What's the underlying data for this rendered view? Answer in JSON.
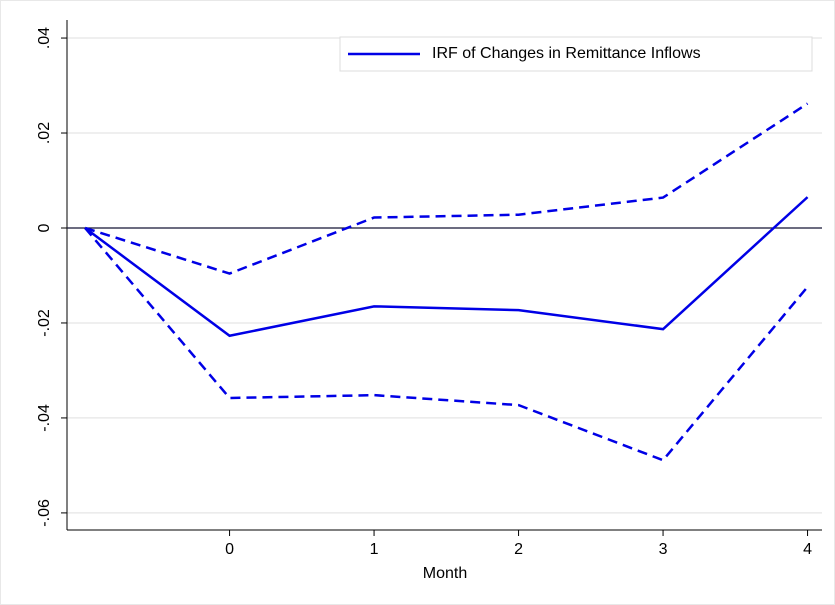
{
  "chart_data": {
    "type": "line",
    "x_label": "Month",
    "x": [
      -1,
      0,
      1,
      2,
      3,
      4
    ],
    "series": [
      {
        "name": "IRF of Changes in Remittance Inflows",
        "color": "#0000e6",
        "dash": false,
        "values": [
          0,
          -0.0227,
          -0.0165,
          -0.0173,
          -0.0213,
          0.0065
        ]
      },
      {
        "color": "#0000e6",
        "dash": true,
        "values": [
          0,
          -0.0096,
          0.0022,
          0.0028,
          0.0064,
          0.0262
        ]
      },
      {
        "color": "#0000e6",
        "dash": true,
        "values": [
          0,
          -0.0358,
          -0.0352,
          -0.0373,
          -0.0489,
          -0.0124
        ]
      }
    ],
    "xlim": [
      -1.125,
      4.1
    ],
    "ylim": [
      -0.0636,
      0.0438
    ],
    "xticks": [
      0,
      1,
      2,
      3,
      4
    ],
    "yticks": [
      {
        "value": -0.06,
        "label": "-.06"
      },
      {
        "value": -0.04,
        "label": "-.04"
      },
      {
        "value": -0.02,
        "label": "-.02"
      },
      0,
      {
        "value": 0.02,
        "label": ".02"
      },
      {
        "value": 0.04,
        "label": ".04"
      }
    ],
    "yline": 0,
    "grid": true,
    "legend": "top-right"
  }
}
